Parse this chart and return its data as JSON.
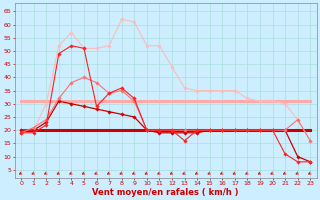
{
  "bg_color": "#cceeff",
  "grid_color": "#aadddd",
  "xlabel": "Vent moyen/en rafales ( km/h )",
  "xlabel_color": "#cc0000",
  "xlabel_fontsize": 6.0,
  "xticks": [
    0,
    1,
    2,
    3,
    4,
    5,
    6,
    7,
    8,
    9,
    10,
    11,
    12,
    13,
    14,
    15,
    16,
    17,
    18,
    19,
    20,
    21,
    22,
    23
  ],
  "yticks": [
    5,
    10,
    15,
    20,
    25,
    30,
    35,
    40,
    45,
    50,
    55,
    60,
    65
  ],
  "ylim": [
    2,
    68
  ],
  "xlim": [
    -0.5,
    23.5
  ],
  "lines": [
    {
      "x": [
        0,
        1,
        2,
        3,
        4,
        5,
        6,
        7,
        8,
        9,
        10,
        11,
        12,
        13,
        14,
        15,
        16,
        17,
        18,
        19,
        20,
        21,
        22,
        23
      ],
      "y": [
        19,
        19,
        22,
        49,
        52,
        51,
        29,
        34,
        36,
        32,
        20,
        20,
        20,
        16,
        20,
        20,
        20,
        20,
        20,
        20,
        20,
        11,
        8,
        8
      ],
      "color": "#ff2020",
      "lw": 0.8,
      "marker": "D",
      "ms": 1.8,
      "zorder": 5
    },
    {
      "x": [
        0,
        1,
        2,
        3,
        4,
        5,
        6,
        7,
        8,
        9,
        10,
        11,
        12,
        13,
        14,
        15,
        16,
        17,
        18,
        19,
        20,
        21,
        22,
        23
      ],
      "y": [
        20,
        20,
        23,
        31,
        30,
        29,
        28,
        27,
        26,
        25,
        20,
        19,
        19,
        19,
        19,
        20,
        20,
        20,
        20,
        20,
        20,
        20,
        10,
        8
      ],
      "color": "#cc0000",
      "lw": 0.9,
      "marker": "D",
      "ms": 1.8,
      "zorder": 4
    },
    {
      "x": [
        0,
        1,
        2,
        3,
        4,
        5,
        6,
        7,
        8,
        9,
        10,
        11,
        12,
        13,
        14,
        15,
        16,
        17,
        18,
        19,
        20,
        21,
        22,
        23
      ],
      "y": [
        20,
        20,
        20,
        20,
        20,
        20,
        20,
        20,
        20,
        20,
        20,
        20,
        20,
        20,
        20,
        20,
        20,
        20,
        20,
        20,
        20,
        20,
        20,
        20
      ],
      "color": "#cc0000",
      "lw": 2.2,
      "marker": null,
      "ms": 0,
      "zorder": 3
    },
    {
      "x": [
        0,
        1,
        2,
        3,
        4,
        5,
        6,
        7,
        8,
        9,
        10,
        11,
        12,
        13,
        14,
        15,
        16,
        17,
        18,
        19,
        20,
        21,
        22,
        23
      ],
      "y": [
        31,
        31,
        31,
        31,
        31,
        31,
        31,
        31,
        31,
        31,
        31,
        31,
        31,
        31,
        31,
        31,
        31,
        31,
        31,
        31,
        31,
        31,
        31,
        31
      ],
      "color": "#ffaaaa",
      "lw": 2.2,
      "marker": null,
      "ms": 0,
      "zorder": 2
    },
    {
      "x": [
        0,
        1,
        2,
        3,
        4,
        5,
        6,
        7,
        8,
        9,
        10,
        11,
        12,
        13,
        14,
        15,
        16,
        17,
        18,
        19,
        20,
        21,
        22,
        23
      ],
      "y": [
        19,
        21,
        24,
        32,
        38,
        40,
        38,
        34,
        35,
        31,
        20,
        20,
        20,
        20,
        20,
        20,
        20,
        20,
        20,
        20,
        20,
        20,
        24,
        16
      ],
      "color": "#ff7070",
      "lw": 0.8,
      "marker": "D",
      "ms": 1.8,
      "zorder": 4
    },
    {
      "x": [
        0,
        1,
        2,
        3,
        4,
        5,
        6,
        7,
        8,
        9,
        10,
        11,
        12,
        13,
        14,
        15,
        16,
        17,
        18,
        19,
        20,
        21,
        22,
        23
      ],
      "y": [
        20,
        20,
        30,
        52,
        57,
        51,
        51,
        52,
        62,
        61,
        52,
        52,
        44,
        36,
        35,
        35,
        35,
        35,
        32,
        31,
        31,
        30,
        24,
        16
      ],
      "color": "#ffbbbb",
      "lw": 0.8,
      "marker": "D",
      "ms": 1.8,
      "zorder": 3
    }
  ],
  "arrow_color": "#dd0000",
  "tick_color": "#cc0000",
  "tick_fontsize": 4.5,
  "spine_color": "#888888"
}
